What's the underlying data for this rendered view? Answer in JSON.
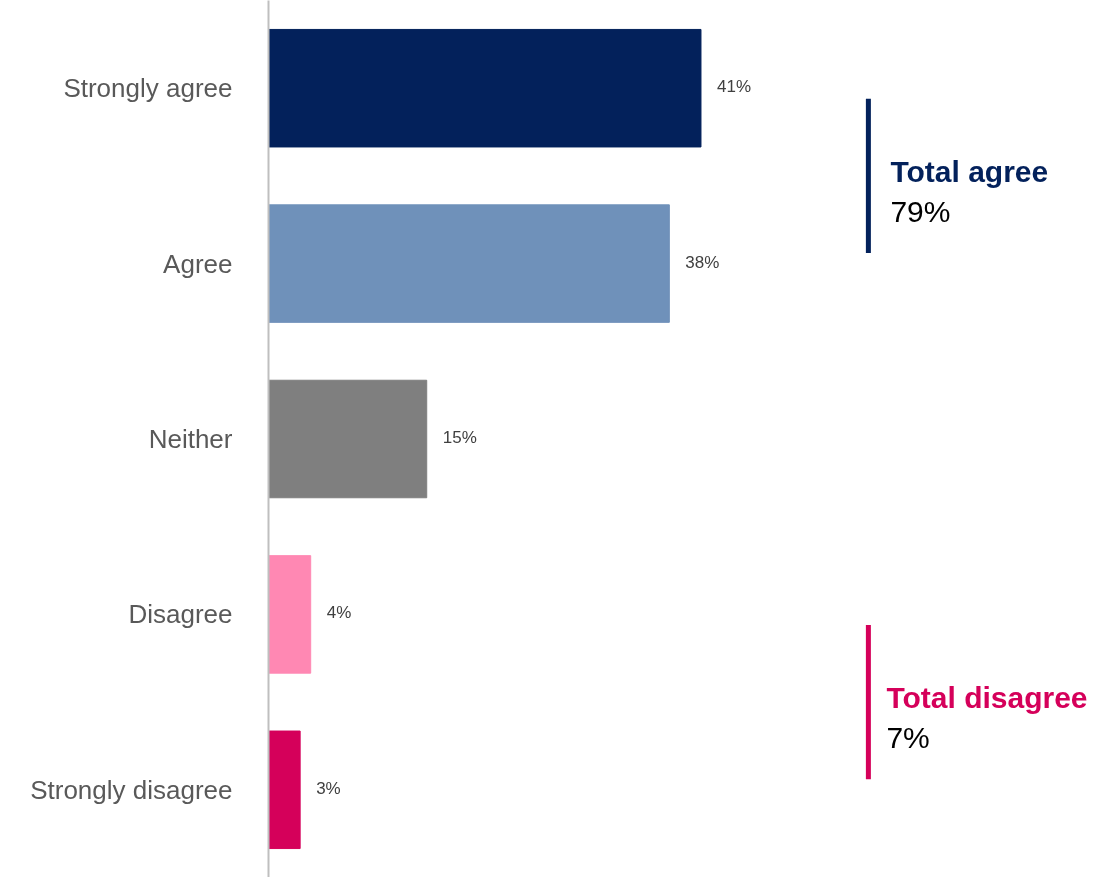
{
  "chart_data": {
    "type": "bar",
    "orientation": "horizontal",
    "categories": [
      "Strongly agree",
      "Agree",
      "Neither",
      "Disagree",
      "Strongly disagree"
    ],
    "values": [
      41,
      38,
      15,
      4,
      3
    ],
    "colors": [
      "#03215b",
      "#6f91ba",
      "#7f7f7f",
      "#ff88b3",
      "#d5005a"
    ],
    "value_labels": [
      "41%",
      "38%",
      "15%",
      "4%",
      "3%"
    ],
    "annotations": [
      "Total agree\n79%",
      "Total disagree\n7%"
    ]
  }
}
